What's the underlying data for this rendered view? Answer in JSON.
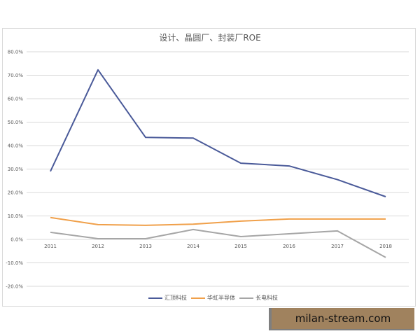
{
  "chart_data": {
    "type": "line",
    "title": "设计、晶圆厂、封装厂ROE",
    "xlabel": "",
    "ylabel": "",
    "categories": [
      "2011",
      "2012",
      "2013",
      "2014",
      "2015",
      "2016",
      "2017",
      "2018"
    ],
    "series": [
      {
        "name": "汇顶科技",
        "color": "#4a5a99",
        "values": [
          29.0,
          72.3,
          43.5,
          43.2,
          32.5,
          31.3,
          25.5,
          18.2
        ]
      },
      {
        "name": "华虹半导体",
        "color": "#f0a04a",
        "values": [
          9.3,
          6.3,
          6.0,
          6.5,
          7.8,
          8.7,
          8.7,
          8.7
        ]
      },
      {
        "name": "长电科技",
        "color": "#a6a6a6",
        "values": [
          3.0,
          0.3,
          0.3,
          4.2,
          1.2,
          2.4,
          3.6,
          -7.7
        ]
      }
    ],
    "ylim": [
      -20,
      80
    ],
    "yticks": [
      "80.0%",
      "70.0%",
      "60.0%",
      "50.0%",
      "40.0%",
      "30.0%",
      "20.0%",
      "10.0%",
      "0.0%",
      "-10.0%",
      "-20.0%"
    ],
    "grid": true,
    "legend_position": "bottom"
  },
  "watermark": {
    "text": "milan-stream.com"
  }
}
